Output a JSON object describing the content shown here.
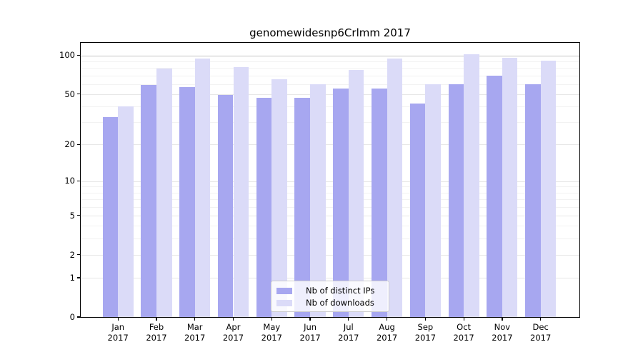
{
  "figure_title": "genomewidesnp6Crlmm 2017",
  "chart_data": {
    "type": "bar",
    "title": "genomewidesnp6Crlmm 2017",
    "categories": [
      "Jan\n2017",
      "Feb\n2017",
      "Mar\n2017",
      "Apr\n2017",
      "May\n2017",
      "Jun\n2017",
      "Jul\n2017",
      "Aug\n2017",
      "Sep\n2017",
      "Oct\n2017",
      "Nov\n2017",
      "Dec\n2017"
    ],
    "series": [
      {
        "name": "Nb of distinct IPs",
        "color": "#a7a7f0",
        "values": [
          33,
          59,
          57,
          49,
          47,
          47,
          55,
          55,
          42,
          60,
          70,
          60
        ]
      },
      {
        "name": "Nb of downloads",
        "color": "#dbdbf8",
        "values": [
          40,
          79,
          95,
          81,
          65,
          60,
          77,
          95,
          60,
          102,
          96,
          91
        ]
      }
    ],
    "xlabel": "",
    "ylabel": "",
    "yscale": "log1p",
    "ylim": [
      0,
      127
    ],
    "yticks": [
      0,
      1,
      2,
      5,
      10,
      20,
      50,
      100
    ],
    "minor_gridlines": [
      3,
      4,
      6,
      7,
      8,
      9,
      30,
      40,
      60,
      70,
      80,
      90
    ],
    "grid": true,
    "legend_position": "lower center",
    "colors": {
      "major_gridline": "#e7e7e7",
      "top_gridline": "#c3c3c3",
      "minor_gridline": "#f2f2f2",
      "axis": "#000000"
    }
  }
}
